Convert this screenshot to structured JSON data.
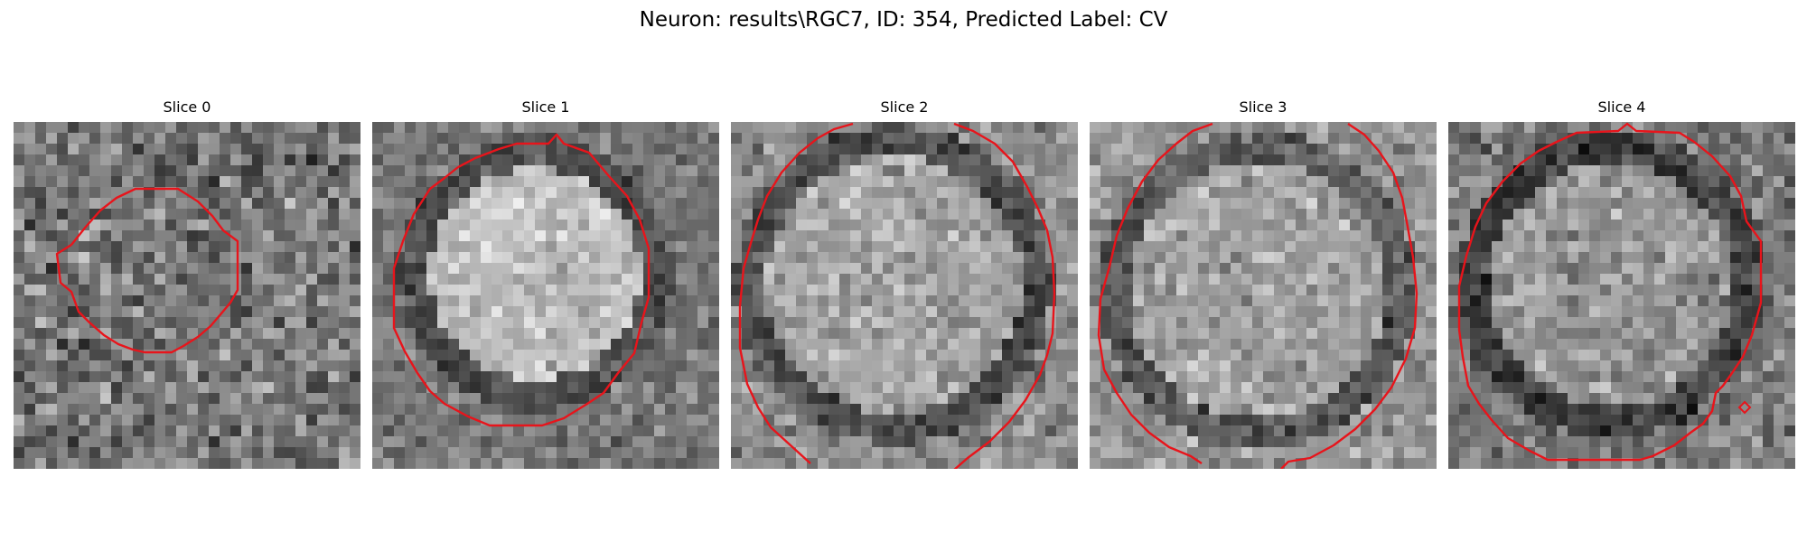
{
  "figure": {
    "title": "Neuron: results\\RGC7, ID: 354, Predicted Label: CV"
  },
  "panels": [
    {
      "title": "Slice 0"
    },
    {
      "title": "Slice 1"
    },
    {
      "title": "Slice 2"
    },
    {
      "title": "Slice 3"
    },
    {
      "title": "Slice 4"
    }
  ],
  "colors": {
    "contour": "#e8141b",
    "background": "#ffffff"
  }
}
